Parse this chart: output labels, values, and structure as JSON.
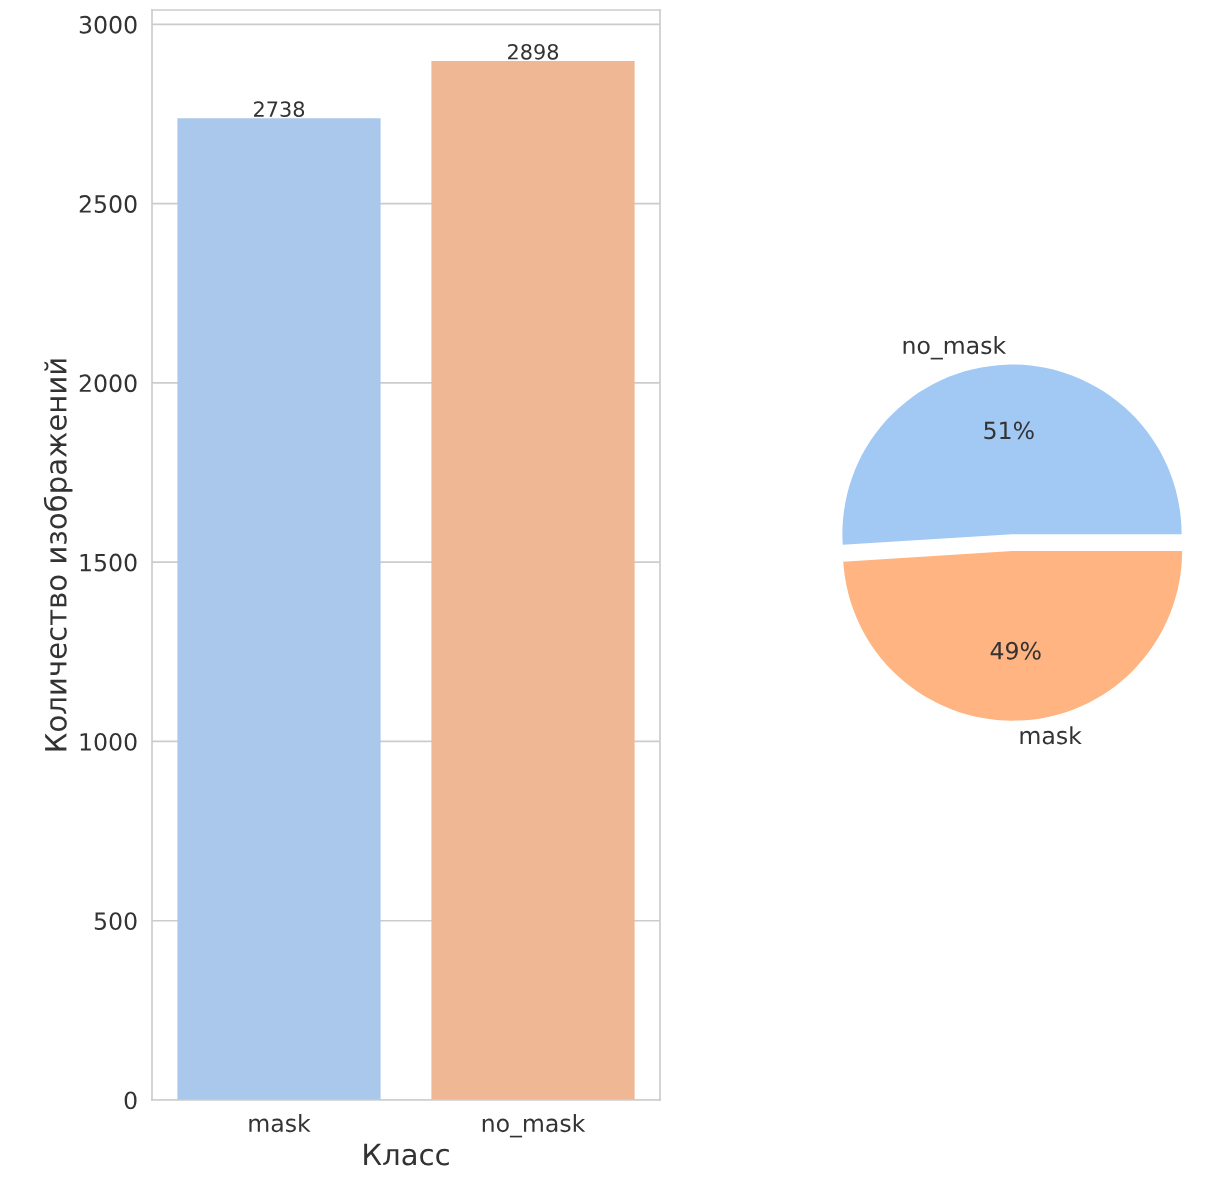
{
  "chart_data": [
    {
      "type": "bar",
      "xlabel": "Класс",
      "ylabel": "Количество изображений",
      "categories": [
        "mask",
        "no_mask"
      ],
      "values": [
        2738,
        2898
      ],
      "colors": [
        "#aac8ec",
        "#efb793"
      ],
      "ylim": [
        0,
        3040
      ],
      "yticks": [
        0,
        500,
        1000,
        1500,
        2000,
        2500,
        3000
      ],
      "grid": "y",
      "data_labels": true
    },
    {
      "type": "pie",
      "categories": [
        "no_mask",
        "mask"
      ],
      "values": [
        51,
        49
      ],
      "colors": [
        "#a1c9f4",
        "#ffb482"
      ],
      "value_labels": [
        "51%",
        "49%"
      ]
    }
  ]
}
